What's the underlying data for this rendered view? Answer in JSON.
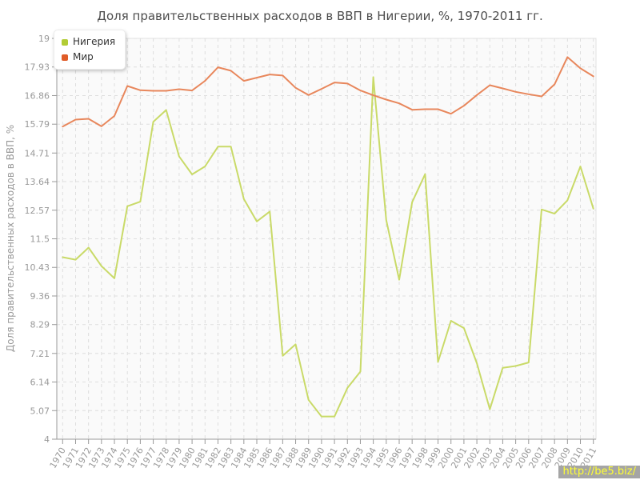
{
  "chart_data": {
    "type": "line",
    "title": "Доля правительственных расходов в ВВП в Нигерии, %, 1970-2011 гг.",
    "xlabel": "",
    "ylabel": "Доля правительственных расходов в ВВП, %",
    "ylim": [
      4,
      19
    ],
    "ytick_labels": [
      "19",
      "17.93",
      "16.86",
      "15.79",
      "14.71",
      "13.64",
      "12.57",
      "11.5",
      "10.43",
      "9.36",
      "8.29",
      "7.21",
      "6.14",
      "5.07",
      "4"
    ],
    "yticks": [
      19,
      17.93,
      16.86,
      15.79,
      14.71,
      13.64,
      12.57,
      11.5,
      10.43,
      9.36,
      8.29,
      7.21,
      6.14,
      5.07,
      4
    ],
    "grid": "dashed",
    "legend_position": "top-left",
    "x": [
      1970,
      1971,
      1972,
      1973,
      1974,
      1975,
      1976,
      1977,
      1978,
      1979,
      1980,
      1981,
      1982,
      1983,
      1984,
      1985,
      1986,
      1987,
      1988,
      1989,
      1990,
      1991,
      1992,
      1993,
      1994,
      1995,
      1996,
      1997,
      1998,
      1999,
      2000,
      2001,
      2002,
      2003,
      2004,
      2005,
      2006,
      2007,
      2008,
      2009,
      2010,
      2011
    ],
    "series": [
      {
        "name": "Нигерия",
        "color": "#c9da68",
        "swatch_color": "#b2cc35",
        "values": [
          10.81,
          10.72,
          11.17,
          10.48,
          10.02,
          12.72,
          12.89,
          15.88,
          16.32,
          14.58,
          13.91,
          14.21,
          14.95,
          14.95,
          12.99,
          12.15,
          12.52,
          7.12,
          7.55,
          5.47,
          4.85,
          4.85,
          5.92,
          6.53,
          17.55,
          12.2,
          9.97,
          12.87,
          13.92,
          6.89,
          8.43,
          8.16,
          6.84,
          5.12,
          6.67,
          6.74,
          6.87,
          12.6,
          12.44,
          12.94,
          14.21,
          12.63
        ]
      },
      {
        "name": "Мир",
        "color": "#e8875c",
        "swatch_color": "#e05c28",
        "values": [
          15.7,
          15.96,
          15.99,
          15.71,
          16.1,
          17.22,
          17.06,
          17.04,
          17.04,
          17.1,
          17.05,
          17.41,
          17.92,
          17.79,
          17.41,
          17.53,
          17.65,
          17.61,
          17.15,
          16.88,
          17.11,
          17.35,
          17.31,
          17.05,
          16.87,
          16.71,
          16.57,
          16.33,
          16.35,
          16.35,
          16.18,
          16.48,
          16.88,
          17.25,
          17.13,
          17.0,
          16.91,
          16.83,
          17.28,
          18.3,
          17.88,
          17.58
        ]
      }
    ]
  },
  "watermark": {
    "text": "http://be5.biz/"
  },
  "colors": {
    "plot_bg": "#fafafa",
    "plot_frame": "#e2e2e2",
    "grid": "#dedede",
    "axis": "#999999",
    "tick_label": "#999999",
    "title_text": "#4d4d4d",
    "watermark_bg": "#a5a5a5",
    "watermark_text": "#ffff33"
  }
}
